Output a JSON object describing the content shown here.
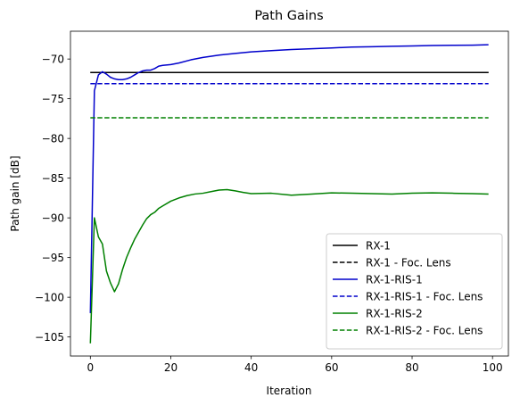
{
  "chart_data": {
    "type": "line",
    "title": "Path Gains",
    "xlabel": "Iteration",
    "ylabel": "Path gain [dB]",
    "xlim": [
      -4.95,
      103.95
    ],
    "ylim": [
      -107.4,
      -66.5
    ],
    "xticks": [
      0,
      20,
      40,
      60,
      80,
      100
    ],
    "yticks": [
      -105,
      -100,
      -95,
      -90,
      -85,
      -80,
      -75,
      -70
    ],
    "legend_position": "lower right",
    "grid": false,
    "series": [
      {
        "name": "RX-1",
        "color": "#000000",
        "dash": "solid",
        "x": [
          0,
          99
        ],
        "y": [
          -71.7,
          -71.7
        ]
      },
      {
        "name": "RX-1 - Foc. Lens",
        "color": "#000000",
        "dash": "dashed",
        "x": [
          0,
          99
        ],
        "y": [
          -71.7,
          -71.7
        ]
      },
      {
        "name": "RX-1-RIS-1",
        "color": "#0000cc",
        "dash": "solid",
        "x": [
          0,
          1,
          2,
          3,
          4,
          5,
          6,
          7,
          8,
          9,
          10,
          11,
          12,
          13,
          14,
          15,
          16,
          17,
          18,
          20,
          22,
          25,
          28,
          32,
          36,
          40,
          45,
          50,
          55,
          60,
          65,
          70,
          75,
          80,
          85,
          90,
          95,
          99
        ],
        "y": [
          -102.0,
          -74.0,
          -72.0,
          -71.6,
          -71.9,
          -72.3,
          -72.5,
          -72.6,
          -72.6,
          -72.5,
          -72.3,
          -72.0,
          -71.7,
          -71.5,
          -71.4,
          -71.4,
          -71.2,
          -70.9,
          -70.8,
          -70.7,
          -70.5,
          -70.1,
          -69.8,
          -69.5,
          -69.3,
          -69.1,
          -68.95,
          -68.8,
          -68.7,
          -68.6,
          -68.5,
          -68.45,
          -68.4,
          -68.35,
          -68.3,
          -68.27,
          -68.25,
          -68.2
        ]
      },
      {
        "name": "RX-1-RIS-1 - Foc. Lens",
        "color": "#0000cc",
        "dash": "dashed",
        "x": [
          0,
          99
        ],
        "y": [
          -73.1,
          -73.1
        ]
      },
      {
        "name": "RX-1-RIS-2",
        "color": "#008000",
        "dash": "solid",
        "x": [
          0,
          1,
          2,
          3,
          4,
          5,
          6,
          7,
          8,
          9,
          10,
          11,
          12,
          13,
          14,
          15,
          16,
          17,
          18,
          20,
          22,
          24,
          26,
          28,
          30,
          32,
          34,
          36,
          38,
          40,
          45,
          50,
          55,
          60,
          65,
          70,
          75,
          80,
          85,
          90,
          95,
          99
        ],
        "y": [
          -105.8,
          -90.0,
          -92.4,
          -93.3,
          -96.7,
          -98.2,
          -99.3,
          -98.3,
          -96.5,
          -95.0,
          -93.8,
          -92.7,
          -91.8,
          -90.9,
          -90.1,
          -89.6,
          -89.3,
          -88.8,
          -88.5,
          -87.9,
          -87.5,
          -87.2,
          -87.0,
          -86.9,
          -86.7,
          -86.5,
          -86.45,
          -86.6,
          -86.8,
          -86.95,
          -86.9,
          -87.15,
          -87.0,
          -86.85,
          -86.9,
          -86.95,
          -87.0,
          -86.9,
          -86.85,
          -86.9,
          -86.95,
          -87.0
        ]
      },
      {
        "name": "RX-1-RIS-2 - Foc. Lens",
        "color": "#008000",
        "dash": "dashed",
        "x": [
          0,
          99
        ],
        "y": [
          -77.4,
          -77.4
        ]
      }
    ]
  }
}
